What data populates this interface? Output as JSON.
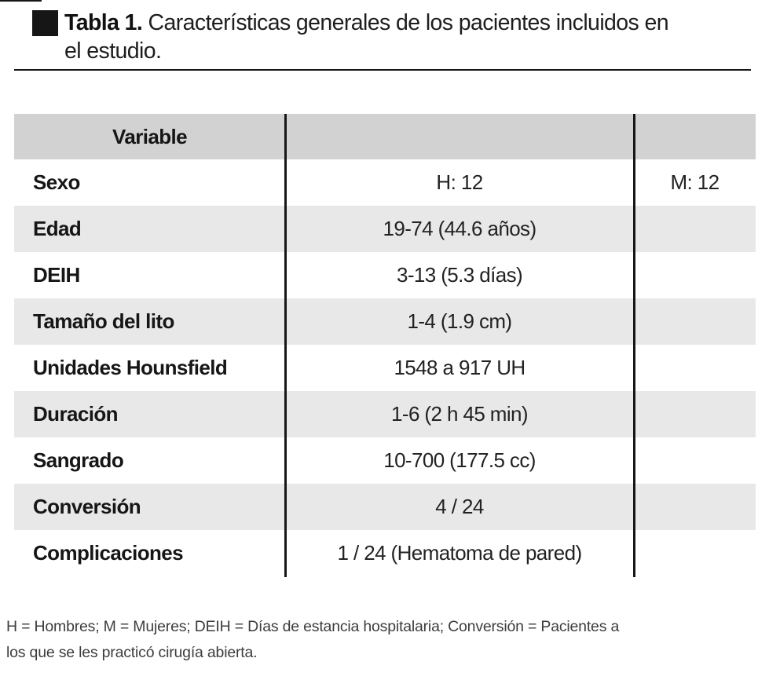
{
  "title": {
    "bold": "Tabla 1.",
    "line1": "Características generales de los pacientes incluidos en",
    "line2": "el estudio."
  },
  "table": {
    "header": {
      "variable": "Variable",
      "value": "",
      "extra": ""
    },
    "rows": [
      {
        "variable": "Sexo",
        "value": "H: 12",
        "extra": "M: 12"
      },
      {
        "variable": "Edad",
        "value": "19-74 (44.6 años)",
        "extra": ""
      },
      {
        "variable": "DEIH",
        "value": "3-13 (5.3 días)",
        "extra": ""
      },
      {
        "variable": "Tamaño del lito",
        "value": "1-4 (1.9 cm)",
        "extra": ""
      },
      {
        "variable": "Unidades Hounsfield",
        "value": "1548 a 917 UH",
        "extra": ""
      },
      {
        "variable": "Duración",
        "value": "1-6 (2 h 45 min)",
        "extra": ""
      },
      {
        "variable": "Sangrado",
        "value": "10-700 (177.5 cc)",
        "extra": ""
      },
      {
        "variable": "Conversión",
        "value": "4 / 24",
        "extra": ""
      },
      {
        "variable": "Complicaciones",
        "value": "1 / 24 (Hematoma de pared)",
        "extra": ""
      }
    ]
  },
  "footnote": {
    "line1": "H = Hombres; M = Mujeres; DEIH = Días de estancia hospitalaria; Conversión = Pacientes a",
    "line2": "los que se les practicó cirugía abierta."
  },
  "colors": {
    "header_bg": "#d2d2d2",
    "alt_row_bg": "#e8e8e8",
    "text": "#1a1a1a",
    "rule": "#161616"
  }
}
